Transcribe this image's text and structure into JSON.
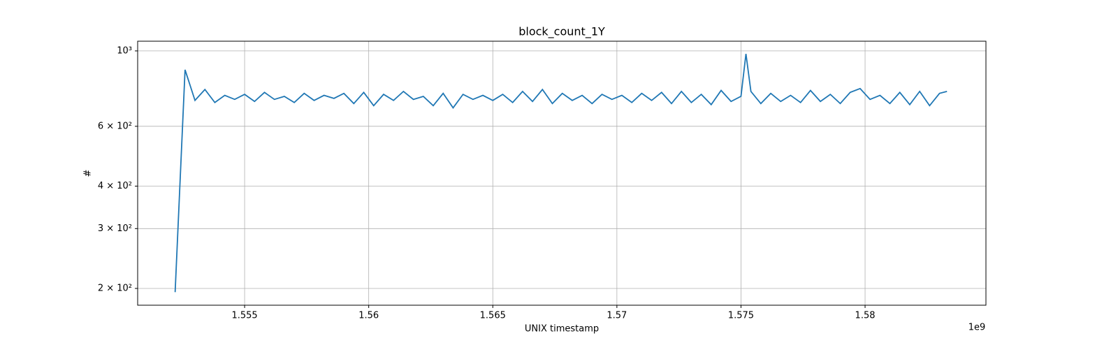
{
  "chart_data": {
    "type": "line",
    "title": "block_count_1Y",
    "x_label": "UNIX timestamp",
    "y_label": "#",
    "x_offset_label": "1e9",
    "x": [
      1.5522,
      1.5526,
      1.553,
      1.5534,
      1.5538,
      1.5542,
      1.5546,
      1.555,
      1.5554,
      1.5558,
      1.5562,
      1.5566,
      1.557,
      1.5574,
      1.5578,
      1.5582,
      1.5586,
      1.559,
      1.5594,
      1.5598,
      1.5602,
      1.5606,
      1.561,
      1.5614,
      1.5618,
      1.5622,
      1.5626,
      1.563,
      1.5634,
      1.5638,
      1.5642,
      1.5646,
      1.565,
      1.5654,
      1.5658,
      1.5662,
      1.5666,
      1.567,
      1.5674,
      1.5678,
      1.5682,
      1.5686,
      1.569,
      1.5694,
      1.5698,
      1.5702,
      1.5706,
      1.571,
      1.5714,
      1.5718,
      1.5722,
      1.5726,
      1.573,
      1.5734,
      1.5738,
      1.5742,
      1.5746,
      1.575,
      1.5752,
      1.5754,
      1.5758,
      1.5762,
      1.5766,
      1.577,
      1.5774,
      1.5778,
      1.5782,
      1.5786,
      1.579,
      1.5794,
      1.5798,
      1.5802,
      1.5806,
      1.581,
      1.5814,
      1.5818,
      1.5822,
      1.5826,
      1.583,
      1.5833
    ],
    "series": [
      {
        "color": "#1f77b4",
        "values": [
          195,
          880,
          715,
          770,
          705,
          740,
          720,
          745,
          710,
          755,
          720,
          735,
          705,
          750,
          715,
          740,
          725,
          750,
          700,
          755,
          690,
          745,
          715,
          760,
          720,
          735,
          690,
          750,
          680,
          745,
          720,
          740,
          715,
          745,
          705,
          760,
          710,
          770,
          700,
          750,
          715,
          740,
          700,
          745,
          720,
          740,
          705,
          750,
          715,
          755,
          700,
          760,
          705,
          745,
          695,
          765,
          710,
          735,
          980,
          760,
          700,
          750,
          710,
          740,
          705,
          765,
          710,
          745,
          700,
          755,
          775,
          720,
          740,
          700,
          755,
          695,
          760,
          690,
          750,
          760
        ]
      }
    ],
    "xlim": [
      1.55069,
      1.58487
    ],
    "xticks": [
      1.555,
      1.56,
      1.565,
      1.57,
      1.575,
      1.58
    ],
    "ylim": [
      178.5,
      1068
    ],
    "yscale": "log",
    "yticks": [
      {
        "value": 200,
        "label": "2 × 10²"
      },
      {
        "value": 300,
        "label": "3 × 10²"
      },
      {
        "value": 400,
        "label": "4 × 10²"
      },
      {
        "value": 600,
        "label": "6 × 10²"
      },
      {
        "value": 1000,
        "label": "10³"
      }
    ],
    "grid": true
  }
}
